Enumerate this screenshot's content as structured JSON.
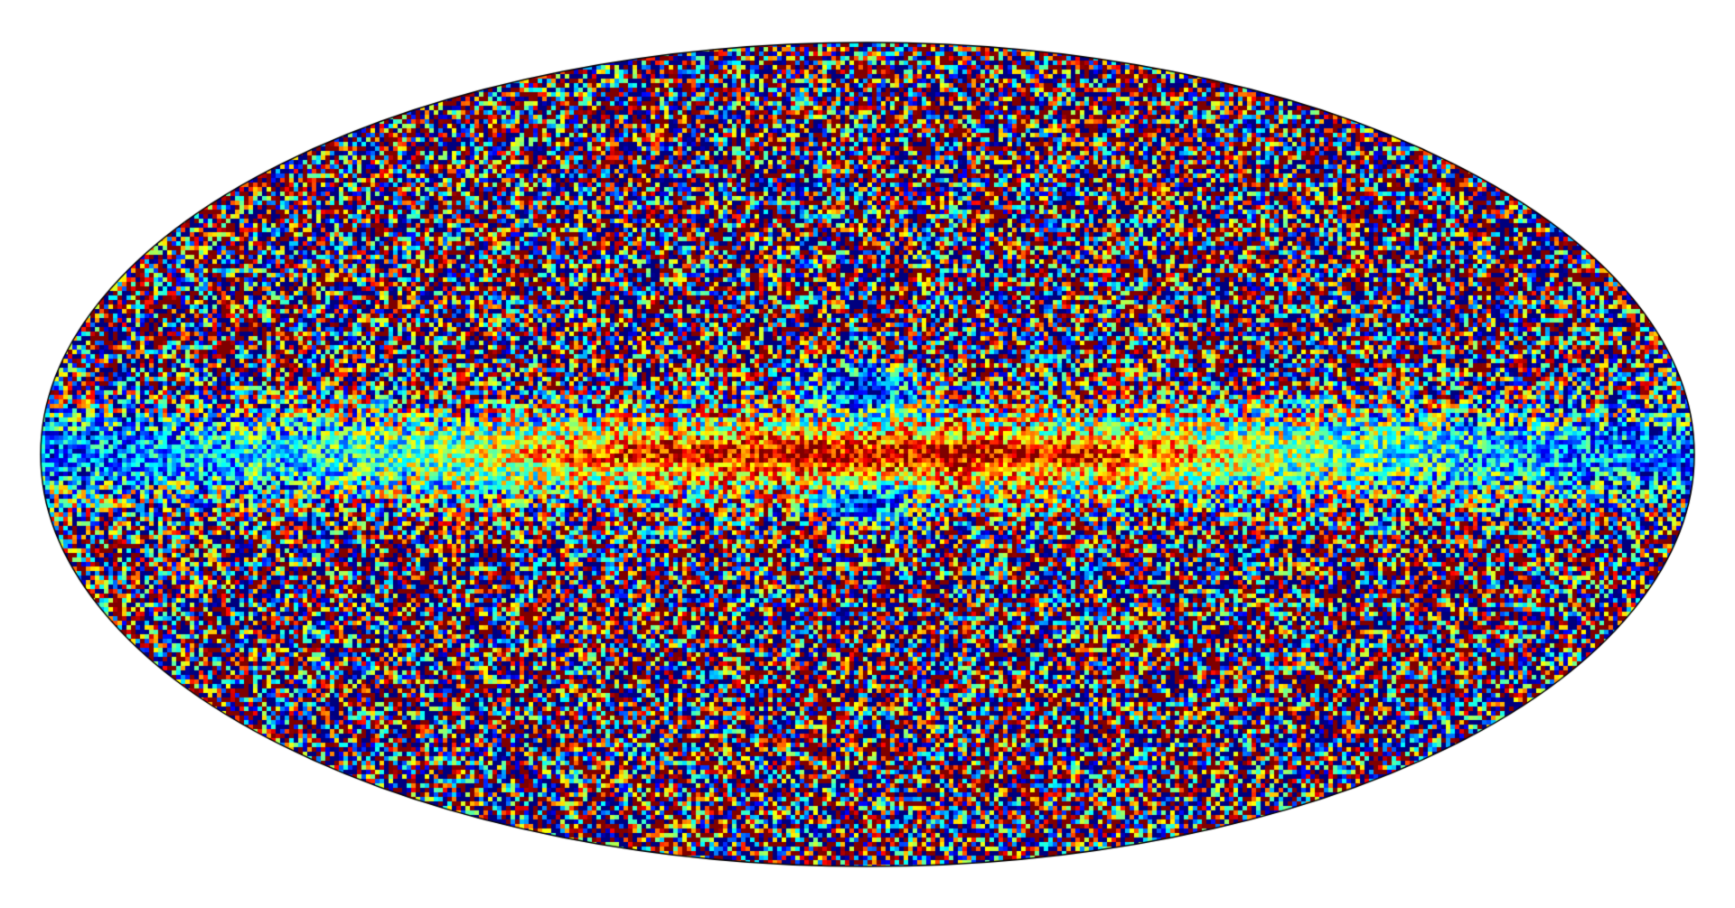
{
  "map": {
    "projection": "mollweide",
    "coordinate_frame": "galactic",
    "colormap": "jet",
    "colormap_stops": [
      "#00007f",
      "#0000ff",
      "#007fff",
      "#00ffff",
      "#7fff7f",
      "#ffff00",
      "#ff7f00",
      "#ff0000",
      "#7f0000"
    ],
    "outline_color": "#000000",
    "background_color": "#ffffff",
    "grid": false,
    "colorbar": false
  }
}
